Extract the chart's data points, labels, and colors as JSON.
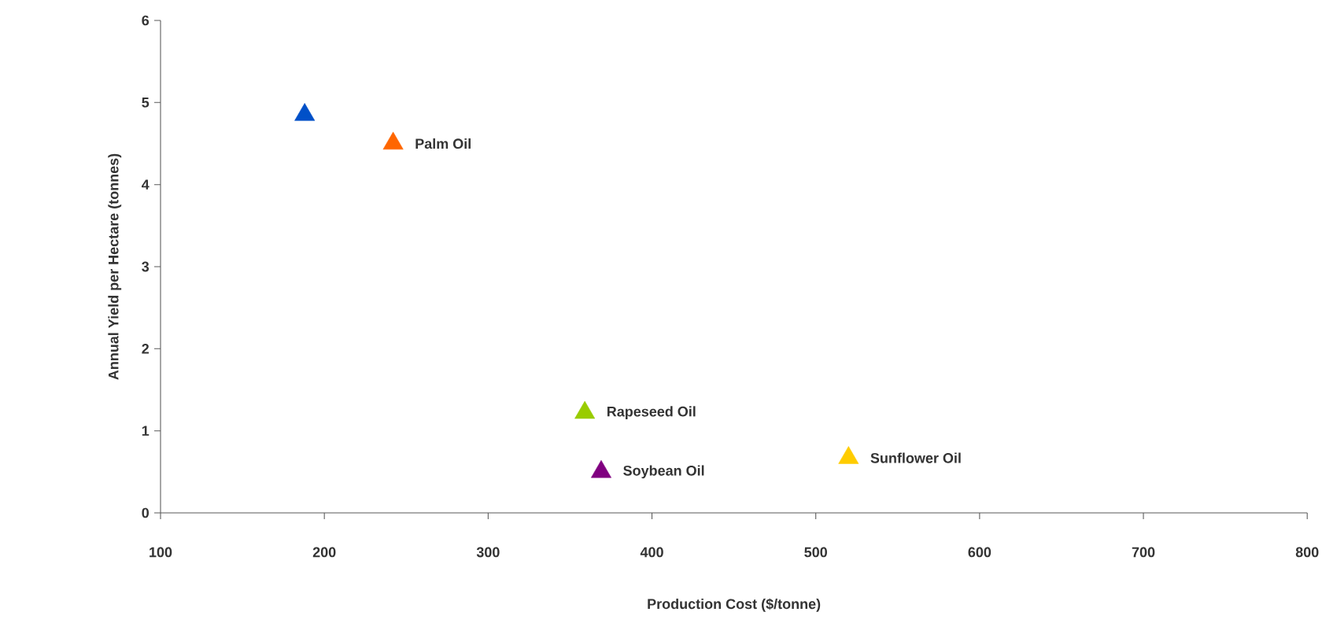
{
  "chart_data": {
    "type": "scatter",
    "xlabel": "Production Cost ($/tonne)",
    "ylabel": "Annual Yield per Hectare (tonnes)",
    "marker": "triangle",
    "xlim": [
      100,
      800
    ],
    "ylim": [
      0,
      6
    ],
    "xticks": [
      100,
      200,
      300,
      400,
      500,
      600,
      700,
      800
    ],
    "yticks": [
      0,
      1,
      2,
      3,
      4,
      5,
      6
    ],
    "grid": false,
    "series": [
      {
        "color": "#0050c8",
        "x": [
          188
        ],
        "values": [
          4.85
        ]
      },
      {
        "name": "Palm Oil",
        "color": "#ff6600",
        "x": [
          242
        ],
        "values": [
          4.5
        ]
      },
      {
        "name": "Rapeseed Oil",
        "color": "#99cc00",
        "x": [
          359
        ],
        "values": [
          1.22
        ]
      },
      {
        "name": "Soybean Oil",
        "color": "#800080",
        "x": [
          369
        ],
        "values": [
          0.5
        ]
      },
      {
        "name": "Sunflower Oil",
        "color": "#ffcc00",
        "x": [
          520
        ],
        "values": [
          0.67
        ]
      }
    ]
  }
}
